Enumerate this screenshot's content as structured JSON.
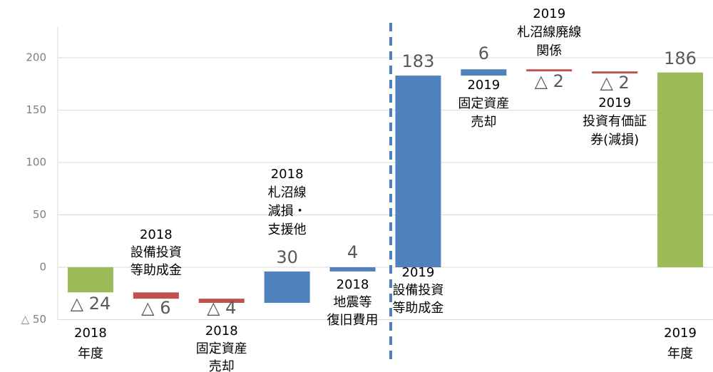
{
  "chart_data": {
    "type": "waterfall",
    "categories": [
      [
        "2018",
        "年度"
      ],
      [
        "2018",
        "設備投資",
        "等助成金"
      ],
      [
        "2018",
        "固定資産",
        "売却"
      ],
      [
        "2018",
        "札沼線",
        "減損・",
        "支援他"
      ],
      [
        "2018",
        "地震等",
        "復旧費用"
      ],
      [
        "2019",
        "設備投資",
        "等助成金"
      ],
      [
        "2019",
        "固定資産",
        "売却"
      ],
      [
        "2019",
        "札沼線廃線",
        "関係"
      ],
      [
        "2019",
        "投資有価証",
        "券(減損)"
      ],
      [
        "2019",
        "年度"
      ]
    ],
    "measure": [
      "total",
      "relative",
      "relative",
      "relative",
      "relative",
      "relative",
      "relative",
      "relative",
      "relative",
      "total"
    ],
    "values": [
      -24,
      -6,
      -4,
      30,
      4,
      183,
      6,
      -2,
      -2,
      186
    ],
    "value_labels": [
      "△ 24",
      "△ 6",
      "△ 4",
      "30",
      "4",
      "183",
      "6",
      "△ 2",
      "△ 2",
      "186"
    ],
    "colors": {
      "total": "#9bbb59",
      "increase": "#4f81bd",
      "decrease": "#c0504d"
    },
    "ylim": [
      -50,
      230
    ],
    "yticks": [
      {
        "value": -50,
        "label": "△ 50"
      },
      0,
      50,
      100,
      150,
      200
    ],
    "grid": true
  }
}
